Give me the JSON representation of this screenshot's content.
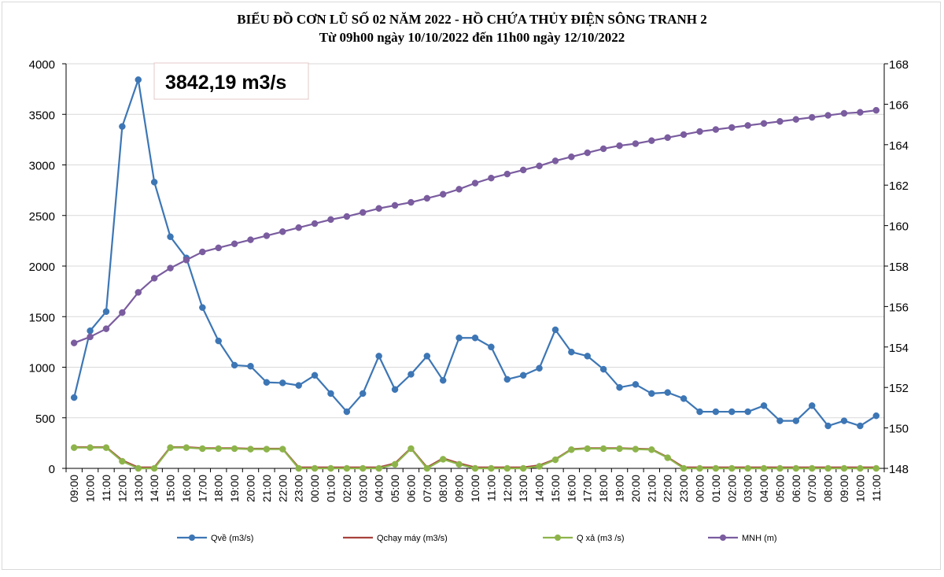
{
  "chart_data": {
    "type": "line",
    "title": "BIỂU ĐỒ CƠN LŨ SỐ 02 NĂM 2022 - HỒ CHỨA THỦY ĐIỆN SÔNG TRANH 2",
    "subtitle": "Từ 09h00 ngày 10/10/2022 đến 11h00 ngày 12/10/2022",
    "annotation": "3842,19 m3/s",
    "y_left": {
      "min": 0,
      "max": 4000,
      "ticks": [
        0,
        500,
        1000,
        1500,
        2000,
        2500,
        3000,
        3500,
        4000
      ]
    },
    "y_right": {
      "min": 148,
      "max": 168,
      "ticks": [
        148,
        150,
        152,
        154,
        156,
        158,
        160,
        162,
        164,
        166,
        168
      ]
    },
    "categories": [
      "09:00",
      "10:00",
      "11:00",
      "12:00",
      "13:00",
      "14:00",
      "15:00",
      "16:00",
      "17:00",
      "18:00",
      "19:00",
      "20:00",
      "21:00",
      "22:00",
      "23:00",
      "00:00",
      "01:00",
      "02:00",
      "03:00",
      "04:00",
      "05:00",
      "06:00",
      "07:00",
      "08:00",
      "09:00",
      "10:00",
      "11:00",
      "12:00",
      "13:00",
      "14:00",
      "15:00",
      "16:00",
      "17:00",
      "18:00",
      "19:00",
      "20:00",
      "21:00",
      "22:00",
      "23:00",
      "00:00",
      "01:00",
      "02:00",
      "03:00",
      "04:00",
      "05:00",
      "06:00",
      "07:00",
      "08:00",
      "09:00",
      "10:00",
      "11:00"
    ],
    "series": [
      {
        "name": "Qvề (m3/s)",
        "axis": "left",
        "color": "#3d76b5",
        "marker": true,
        "values": [
          700,
          1360,
          1550,
          3380,
          3842.19,
          2830,
          2290,
          2080,
          1590,
          1260,
          1020,
          1010,
          850,
          845,
          820,
          920,
          740,
          560,
          740,
          1110,
          780,
          930,
          1110,
          870,
          1290,
          1290,
          1200,
          880,
          920,
          990,
          1370,
          1150,
          1110,
          980,
          800,
          830,
          740,
          750,
          690,
          560,
          560,
          560,
          560,
          620,
          470,
          470,
          620,
          420,
          470,
          420,
          520
        ]
      },
      {
        "name": "Qchạy máy (m3/s)",
        "axis": "left",
        "color": "#a8423d",
        "marker": false,
        "values": [
          210,
          210,
          210,
          80,
          10,
          10,
          210,
          210,
          200,
          200,
          200,
          195,
          195,
          195,
          10,
          10,
          10,
          10,
          10,
          10,
          50,
          200,
          10,
          100,
          50,
          10,
          10,
          10,
          10,
          30,
          90,
          190,
          200,
          200,
          200,
          195,
          190,
          110,
          10,
          10,
          10,
          10,
          10,
          10,
          10,
          10,
          10,
          10,
          10,
          10,
          10
        ]
      },
      {
        "name": "Q xả (m3 /s)",
        "axis": "left",
        "color": "#8db44a",
        "marker": true,
        "values": [
          205,
          205,
          205,
          70,
          0,
          0,
          205,
          205,
          195,
          195,
          195,
          190,
          190,
          190,
          0,
          0,
          0,
          0,
          0,
          0,
          40,
          195,
          0,
          90,
          40,
          0,
          0,
          0,
          0,
          20,
          85,
          185,
          195,
          195,
          195,
          190,
          185,
          105,
          0,
          0,
          0,
          0,
          0,
          0,
          0,
          0,
          0,
          0,
          0,
          0,
          0
        ]
      },
      {
        "name": "MNH (m)",
        "axis": "right",
        "color": "#7a5c9f",
        "marker": true,
        "values": [
          154.2,
          154.5,
          154.9,
          155.7,
          156.7,
          157.4,
          157.9,
          158.3,
          158.7,
          158.9,
          159.1,
          159.3,
          159.5,
          159.7,
          159.9,
          160.1,
          160.3,
          160.45,
          160.65,
          160.85,
          161.0,
          161.15,
          161.35,
          161.55,
          161.8,
          162.1,
          162.35,
          162.55,
          162.75,
          162.95,
          163.2,
          163.4,
          163.6,
          163.8,
          163.95,
          164.05,
          164.2,
          164.35,
          164.5,
          164.65,
          164.75,
          164.85,
          164.95,
          165.05,
          165.15,
          165.25,
          165.35,
          165.45,
          165.55,
          165.6,
          165.7
        ]
      }
    ]
  }
}
